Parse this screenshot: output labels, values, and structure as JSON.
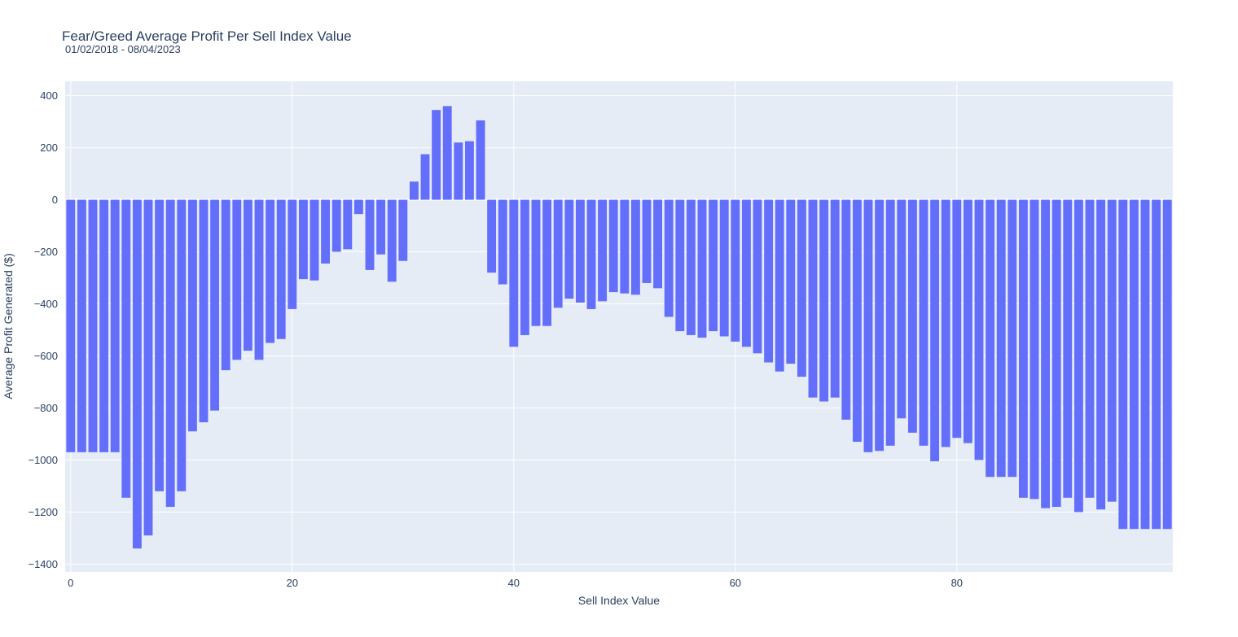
{
  "colors": {
    "bar": "#636efa",
    "plot_bg": "#e5ecf6",
    "grid": "#ffffff",
    "text": "#2a3f5f"
  },
  "chart_data": {
    "type": "bar",
    "title": "Fear/Greed Average Profit Per Sell Index Value",
    "subtitle": "01/02/2018 - 08/04/2023",
    "xlabel": "Sell Index Value",
    "ylabel": "Average Profit Generated ($)",
    "xlim": [
      -0.5,
      99.5
    ],
    "ylim": [
      -1430,
      455
    ],
    "x_ticks": [
      0,
      20,
      40,
      60,
      80
    ],
    "y_ticks": [
      400,
      200,
      0,
      -200,
      -400,
      -600,
      -800,
      -1000,
      -1200,
      -1400
    ],
    "y_tick_labels": [
      "400",
      "200",
      "0",
      "−200",
      "−400",
      "−600",
      "−800",
      "−1000",
      "−1200",
      "−1400"
    ],
    "grid": true,
    "legend": "none",
    "x": [
      0,
      1,
      2,
      3,
      4,
      5,
      6,
      7,
      8,
      9,
      10,
      11,
      12,
      13,
      14,
      15,
      16,
      17,
      18,
      19,
      20,
      21,
      22,
      23,
      24,
      25,
      26,
      27,
      28,
      29,
      30,
      31,
      32,
      33,
      34,
      35,
      36,
      37,
      38,
      39,
      40,
      41,
      42,
      43,
      44,
      45,
      46,
      47,
      48,
      49,
      50,
      51,
      52,
      53,
      54,
      55,
      56,
      57,
      58,
      59,
      60,
      61,
      62,
      63,
      64,
      65,
      66,
      67,
      68,
      69,
      70,
      71,
      72,
      73,
      74,
      75,
      76,
      77,
      78,
      79,
      80,
      81,
      82,
      83,
      84,
      85,
      86,
      87,
      88,
      89,
      90,
      91,
      92,
      93,
      94,
      95,
      96,
      97,
      98,
      99
    ],
    "values": [
      -970,
      -970,
      -970,
      -970,
      -970,
      -1145,
      -1340,
      -1290,
      -1120,
      -1180,
      -1120,
      -890,
      -855,
      -810,
      -655,
      -615,
      -580,
      -615,
      -550,
      -535,
      -420,
      -305,
      -310,
      -245,
      -200,
      -190,
      -55,
      -270,
      -210,
      -315,
      -235,
      70,
      175,
      345,
      360,
      220,
      225,
      305,
      -280,
      -325,
      -565,
      -520,
      -485,
      -485,
      -415,
      -380,
      -395,
      -420,
      -390,
      -355,
      -360,
      -365,
      -320,
      -340,
      -450,
      -505,
      -520,
      -530,
      -505,
      -525,
      -545,
      -565,
      -590,
      -625,
      -660,
      -630,
      -680,
      -760,
      -775,
      -760,
      -845,
      -930,
      -970,
      -965,
      -945,
      -840,
      -895,
      -945,
      -1005,
      -950,
      -915,
      -935,
      -1000,
      -1065,
      -1065,
      -1065,
      -1145,
      -1150,
      -1185,
      -1180,
      -1145,
      -1200,
      -1145,
      -1190,
      -1160,
      -1265,
      -1265,
      -1265,
      -1265,
      -1265
    ]
  }
}
